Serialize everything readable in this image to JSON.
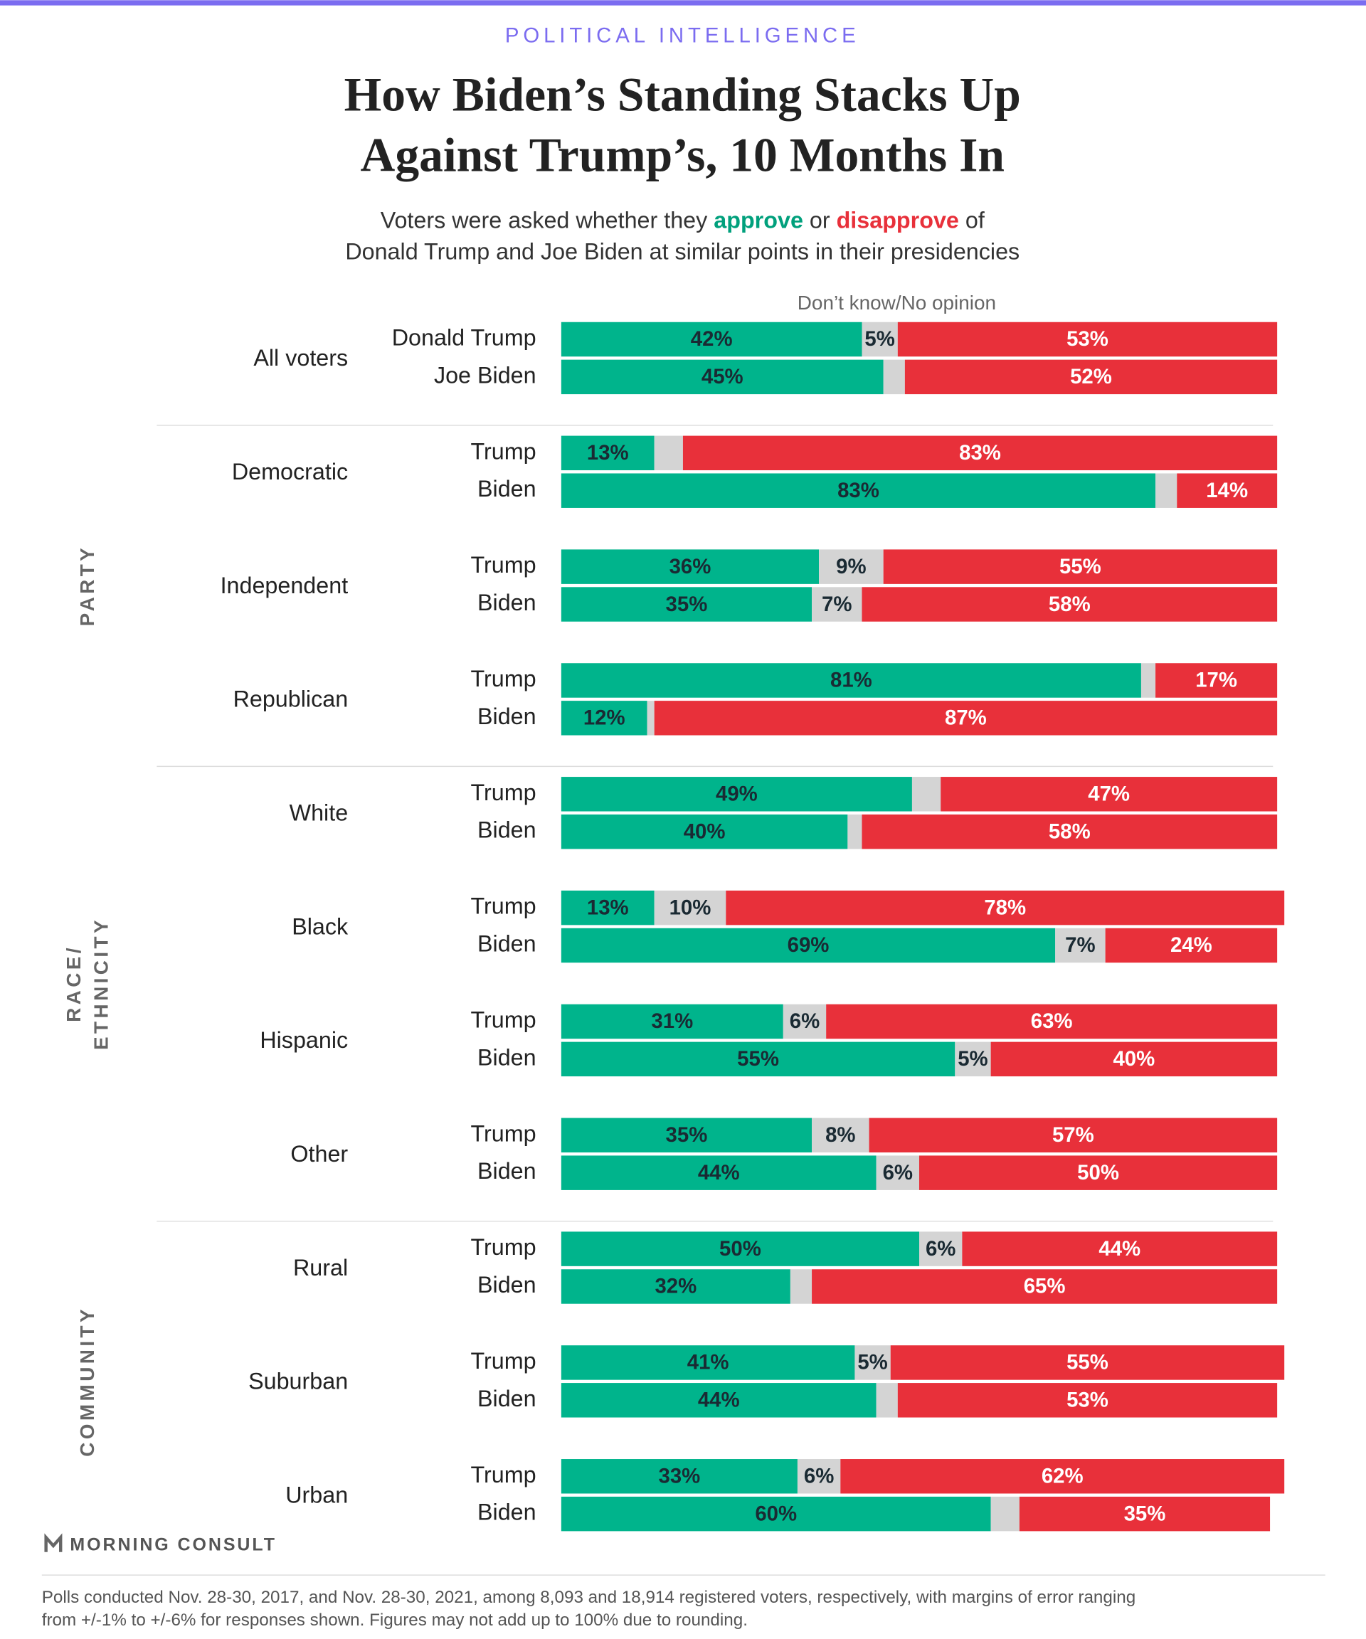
{
  "header": "POLITICAL INTELLIGENCE",
  "chart_data": {
    "type": "stacked-bar",
    "title": [
      "How Biden’s Standing Stacks Up",
      "Against Trump’s, 10 Months In"
    ],
    "subtitle": [
      "Voters were asked whether they ",
      " or ",
      " of",
      "Donald Trump and Joe Biden at similar points in their presidencies"
    ],
    "series": [
      {
        "name": "approve",
        "color": "#00b48c"
      },
      {
        "name": "Don’t know/No opinion",
        "color": "#d4d4d4"
      },
      {
        "name": "disapprove",
        "color": "#e8303a"
      }
    ],
    "sections": [
      {
        "groups": [
          {
            "label": "All voters",
            "rows": [
              {
                "label": "Donald Trump",
                "values": [
                  42,
                  5,
                  53
                ],
                "value_labels": [
                  "42%",
                  "5%",
                  "53%"
                ]
              },
              {
                "label": "Joe Biden",
                "values": [
                  45,
                  3,
                  52
                ],
                "value_labels": [
                  "45%",
                  null,
                  "52%"
                ]
              }
            ]
          }
        ]
      },
      {
        "label": [
          "PARTY"
        ],
        "groups": [
          {
            "label": "Democratic",
            "rows": [
              {
                "label": "Trump",
                "values": [
                  13,
                  4,
                  83
                ],
                "value_labels": [
                  "13%",
                  null,
                  "83%"
                ]
              },
              {
                "label": "Biden",
                "values": [
                  83,
                  3,
                  14
                ],
                "value_labels": [
                  "83%",
                  null,
                  "14%"
                ]
              }
            ]
          },
          {
            "label": "Independent",
            "rows": [
              {
                "label": "Trump",
                "values": [
                  36,
                  9,
                  55
                ],
                "value_labels": [
                  "36%",
                  "9%",
                  "55%"
                ]
              },
              {
                "label": "Biden",
                "values": [
                  35,
                  7,
                  58
                ],
                "value_labels": [
                  "35%",
                  "7%",
                  "58%"
                ]
              }
            ]
          },
          {
            "label": "Republican",
            "rows": [
              {
                "label": "Trump",
                "values": [
                  81,
                  2,
                  17
                ],
                "value_labels": [
                  "81%",
                  null,
                  "17%"
                ]
              },
              {
                "label": "Biden",
                "values": [
                  12,
                  1,
                  87
                ],
                "value_labels": [
                  "12%",
                  null,
                  "87%"
                ]
              }
            ]
          }
        ]
      },
      {
        "label": [
          "RACE/",
          "ETHNICITY"
        ],
        "groups": [
          {
            "label": "White",
            "rows": [
              {
                "label": "Trump",
                "values": [
                  49,
                  4,
                  47
                ],
                "value_labels": [
                  "49%",
                  null,
                  "47%"
                ]
              },
              {
                "label": "Biden",
                "values": [
                  40,
                  2,
                  58
                ],
                "value_labels": [
                  "40%",
                  null,
                  "58%"
                ]
              }
            ]
          },
          {
            "label": "Black",
            "rows": [
              {
                "label": "Trump",
                "values": [
                  13,
                  10,
                  78
                ],
                "value_labels": [
                  "13%",
                  "10%",
                  "78%"
                ]
              },
              {
                "label": "Biden",
                "values": [
                  69,
                  7,
                  24
                ],
                "value_labels": [
                  "69%",
                  "7%",
                  "24%"
                ]
              }
            ]
          },
          {
            "label": "Hispanic",
            "rows": [
              {
                "label": "Trump",
                "values": [
                  31,
                  6,
                  63
                ],
                "value_labels": [
                  "31%",
                  "6%",
                  "63%"
                ]
              },
              {
                "label": "Biden",
                "values": [
                  55,
                  5,
                  40
                ],
                "value_labels": [
                  "55%",
                  "5%",
                  "40%"
                ]
              }
            ]
          },
          {
            "label": "Other",
            "rows": [
              {
                "label": "Trump",
                "values": [
                  35,
                  8,
                  57
                ],
                "value_labels": [
                  "35%",
                  "8%",
                  "57%"
                ]
              },
              {
                "label": "Biden",
                "values": [
                  44,
                  6,
                  50
                ],
                "value_labels": [
                  "44%",
                  "6%",
                  "50%"
                ]
              }
            ]
          }
        ]
      },
      {
        "label": [
          "COMMUNITY"
        ],
        "groups": [
          {
            "label": "Rural",
            "rows": [
              {
                "label": "Trump",
                "values": [
                  50,
                  6,
                  44
                ],
                "value_labels": [
                  "50%",
                  "6%",
                  "44%"
                ]
              },
              {
                "label": "Biden",
                "values": [
                  32,
                  3,
                  65
                ],
                "value_labels": [
                  "32%",
                  null,
                  "65%"
                ]
              }
            ]
          },
          {
            "label": "Suburban",
            "rows": [
              {
                "label": "Trump",
                "values": [
                  41,
                  5,
                  55
                ],
                "value_labels": [
                  "41%",
                  "5%",
                  "55%"
                ]
              },
              {
                "label": "Biden",
                "values": [
                  44,
                  3,
                  53
                ],
                "value_labels": [
                  "44%",
                  null,
                  "53%"
                ]
              }
            ]
          },
          {
            "label": "Urban",
            "rows": [
              {
                "label": "Trump",
                "values": [
                  33,
                  6,
                  62
                ],
                "value_labels": [
                  "33%",
                  "6%",
                  "62%"
                ]
              },
              {
                "label": "Biden",
                "values": [
                  60,
                  4,
                  35
                ],
                "value_labels": [
                  "60%",
                  null,
                  "35%"
                ]
              }
            ]
          }
        ]
      }
    ]
  },
  "logo": "MORNING CONSULT",
  "footer": [
    "Polls conducted Nov. 28-30, 2017, and Nov. 28-30, 2021, among 8,093 and 18,914 registered voters, respectively, with margins of error ranging",
    "from +/-1% to +/-6% for responses shown. Figures may not add up to 100% due to rounding."
  ]
}
